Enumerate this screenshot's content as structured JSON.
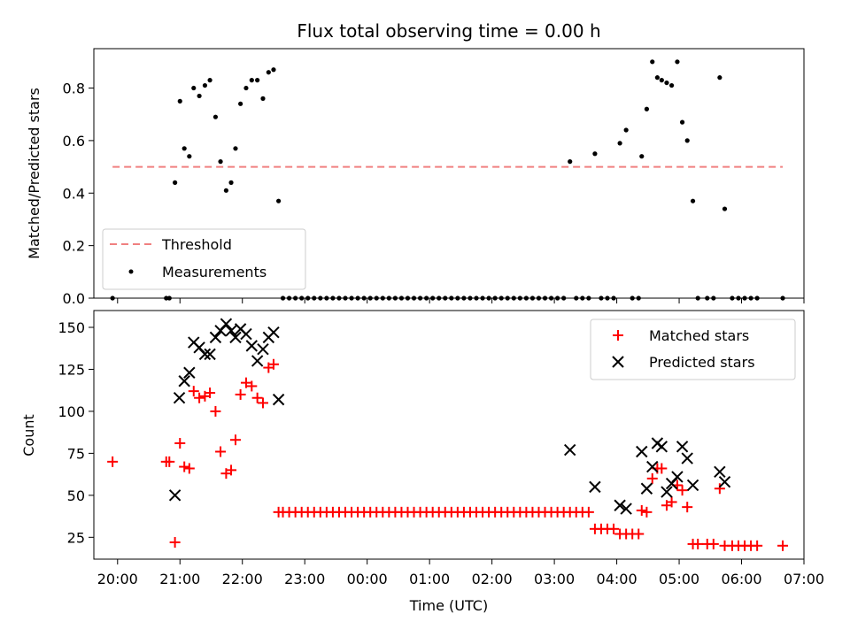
{
  "chart_data": [
    {
      "type": "scatter",
      "title": "Flux total observing time = 0.00 h",
      "xlabel": "",
      "ylabel": "Matched/Predicted stars",
      "ylim": [
        0,
        0.95
      ],
      "yticks": [
        0.0,
        0.2,
        0.4,
        0.6,
        0.8
      ],
      "ytick_labels": [
        "0.0",
        "0.2",
        "0.4",
        "0.6",
        "0.8"
      ],
      "xlim": [
        19.62,
        31.0
      ],
      "legend_position": "lower-left",
      "threshold": {
        "name": "Threshold",
        "value": 0.5,
        "x_range": [
          19.92,
          30.66
        ],
        "color": "#f08080"
      },
      "series": [
        {
          "name": "Measurements",
          "color": "#000000",
          "points": [
            [
              19.92,
              0.0
            ],
            [
              20.78,
              0.0
            ],
            [
              20.83,
              0.0
            ],
            [
              20.92,
              0.44
            ],
            [
              21.0,
              0.75
            ],
            [
              21.07,
              0.57
            ],
            [
              21.15,
              0.54
            ],
            [
              21.22,
              0.8
            ],
            [
              21.31,
              0.77
            ],
            [
              21.4,
              0.81
            ],
            [
              21.48,
              0.83
            ],
            [
              21.57,
              0.69
            ],
            [
              21.65,
              0.52
            ],
            [
              21.74,
              0.41
            ],
            [
              21.82,
              0.44
            ],
            [
              21.89,
              0.57
            ],
            [
              21.97,
              0.74
            ],
            [
              22.06,
              0.8
            ],
            [
              22.15,
              0.83
            ],
            [
              22.24,
              0.83
            ],
            [
              22.33,
              0.76
            ],
            [
              22.42,
              0.86
            ],
            [
              22.5,
              0.87
            ],
            [
              22.58,
              0.37
            ],
            [
              22.65,
              0.0
            ],
            [
              22.75,
              0.0
            ],
            [
              22.85,
              0.0
            ],
            [
              22.95,
              0.0
            ],
            [
              23.05,
              0.0
            ],
            [
              23.15,
              0.0
            ],
            [
              23.25,
              0.0
            ],
            [
              23.35,
              0.0
            ],
            [
              23.45,
              0.0
            ],
            [
              23.55,
              0.0
            ],
            [
              23.65,
              0.0
            ],
            [
              23.75,
              0.0
            ],
            [
              23.85,
              0.0
            ],
            [
              23.95,
              0.0
            ],
            [
              24.05,
              0.0
            ],
            [
              24.15,
              0.0
            ],
            [
              24.25,
              0.0
            ],
            [
              24.35,
              0.0
            ],
            [
              24.45,
              0.0
            ],
            [
              24.55,
              0.0
            ],
            [
              24.65,
              0.0
            ],
            [
              24.75,
              0.0
            ],
            [
              24.85,
              0.0
            ],
            [
              24.95,
              0.0
            ],
            [
              25.05,
              0.0
            ],
            [
              25.15,
              0.0
            ],
            [
              25.25,
              0.0
            ],
            [
              25.35,
              0.0
            ],
            [
              25.45,
              0.0
            ],
            [
              25.55,
              0.0
            ],
            [
              25.65,
              0.0
            ],
            [
              25.75,
              0.0
            ],
            [
              25.85,
              0.0
            ],
            [
              25.95,
              0.0
            ],
            [
              26.05,
              0.0
            ],
            [
              26.15,
              0.0
            ],
            [
              26.25,
              0.0
            ],
            [
              26.35,
              0.0
            ],
            [
              26.45,
              0.0
            ],
            [
              26.55,
              0.0
            ],
            [
              26.65,
              0.0
            ],
            [
              26.75,
              0.0
            ],
            [
              26.85,
              0.0
            ],
            [
              26.95,
              0.0
            ],
            [
              27.05,
              0.0
            ],
            [
              27.15,
              0.0
            ],
            [
              27.25,
              0.52
            ],
            [
              27.35,
              0.0
            ],
            [
              27.45,
              0.0
            ],
            [
              27.55,
              0.0
            ],
            [
              27.65,
              0.55
            ],
            [
              27.75,
              0.0
            ],
            [
              27.85,
              0.0
            ],
            [
              27.95,
              0.0
            ],
            [
              28.05,
              0.59
            ],
            [
              28.15,
              0.64
            ],
            [
              28.25,
              0.0
            ],
            [
              28.35,
              0.0
            ],
            [
              28.4,
              0.54
            ],
            [
              28.48,
              0.72
            ],
            [
              28.57,
              0.9
            ],
            [
              28.65,
              0.84
            ],
            [
              28.72,
              0.83
            ],
            [
              28.8,
              0.82
            ],
            [
              28.88,
              0.81
            ],
            [
              28.97,
              0.9
            ],
            [
              29.05,
              0.67
            ],
            [
              29.13,
              0.6
            ],
            [
              29.22,
              0.37
            ],
            [
              29.3,
              0.0
            ],
            [
              29.45,
              0.0
            ],
            [
              29.55,
              0.0
            ],
            [
              29.65,
              0.84
            ],
            [
              29.73,
              0.34
            ],
            [
              29.85,
              0.0
            ],
            [
              29.95,
              0.0
            ],
            [
              30.05,
              0.0
            ],
            [
              30.15,
              0.0
            ],
            [
              30.25,
              0.0
            ],
            [
              30.66,
              0.0
            ]
          ]
        }
      ]
    },
    {
      "type": "scatter",
      "xlabel": "Time (UTC)",
      "ylabel": "Count",
      "ylim": [
        12,
        160
      ],
      "yticks": [
        25,
        50,
        75,
        100,
        125,
        150
      ],
      "ytick_labels": [
        "25",
        "50",
        "75",
        "100",
        "125",
        "150"
      ],
      "xlim": [
        19.62,
        31.0
      ],
      "xticks": [
        20,
        21,
        22,
        23,
        24,
        25,
        26,
        27,
        28,
        29,
        30,
        31
      ],
      "xtick_labels": [
        "20:00",
        "21:00",
        "22:00",
        "23:00",
        "00:00",
        "01:00",
        "02:00",
        "03:00",
        "04:00",
        "05:00",
        "06:00",
        "07:00"
      ],
      "legend_position": "upper-right",
      "series": [
        {
          "name": "Matched stars",
          "color": "#ff0000",
          "marker": "plus",
          "points": [
            [
              19.92,
              70
            ],
            [
              20.78,
              70
            ],
            [
              20.83,
              70
            ],
            [
              20.92,
              22
            ],
            [
              21.0,
              81
            ],
            [
              21.07,
              67
            ],
            [
              21.15,
              66
            ],
            [
              21.22,
              112
            ],
            [
              21.31,
              108
            ],
            [
              21.4,
              109
            ],
            [
              21.48,
              111
            ],
            [
              21.57,
              100
            ],
            [
              21.65,
              76
            ],
            [
              21.74,
              63
            ],
            [
              21.82,
              65
            ],
            [
              21.89,
              83
            ],
            [
              21.97,
              110
            ],
            [
              22.06,
              117
            ],
            [
              22.15,
              115
            ],
            [
              22.24,
              108
            ],
            [
              22.33,
              105
            ],
            [
              22.42,
              126
            ],
            [
              22.5,
              128
            ],
            [
              22.58,
              40
            ],
            [
              22.65,
              40
            ],
            [
              22.75,
              40
            ],
            [
              22.85,
              40
            ],
            [
              22.95,
              40
            ],
            [
              23.05,
              40
            ],
            [
              23.15,
              40
            ],
            [
              23.25,
              40
            ],
            [
              23.35,
              40
            ],
            [
              23.45,
              40
            ],
            [
              23.55,
              40
            ],
            [
              23.65,
              40
            ],
            [
              23.75,
              40
            ],
            [
              23.85,
              40
            ],
            [
              23.95,
              40
            ],
            [
              24.05,
              40
            ],
            [
              24.15,
              40
            ],
            [
              24.25,
              40
            ],
            [
              24.35,
              40
            ],
            [
              24.45,
              40
            ],
            [
              24.55,
              40
            ],
            [
              24.65,
              40
            ],
            [
              24.75,
              40
            ],
            [
              24.85,
              40
            ],
            [
              24.95,
              40
            ],
            [
              25.05,
              40
            ],
            [
              25.15,
              40
            ],
            [
              25.25,
              40
            ],
            [
              25.35,
              40
            ],
            [
              25.45,
              40
            ],
            [
              25.55,
              40
            ],
            [
              25.65,
              40
            ],
            [
              25.75,
              40
            ],
            [
              25.85,
              40
            ],
            [
              25.95,
              40
            ],
            [
              26.05,
              40
            ],
            [
              26.15,
              40
            ],
            [
              26.25,
              40
            ],
            [
              26.35,
              40
            ],
            [
              26.45,
              40
            ],
            [
              26.55,
              40
            ],
            [
              26.65,
              40
            ],
            [
              26.75,
              40
            ],
            [
              26.85,
              40
            ],
            [
              26.95,
              40
            ],
            [
              27.05,
              40
            ],
            [
              27.15,
              40
            ],
            [
              27.25,
              40
            ],
            [
              27.35,
              40
            ],
            [
              27.45,
              40
            ],
            [
              27.55,
              40
            ],
            [
              27.65,
              30
            ],
            [
              27.75,
              30
            ],
            [
              27.85,
              30
            ],
            [
              27.95,
              30
            ],
            [
              28.05,
              27
            ],
            [
              28.15,
              27
            ],
            [
              28.25,
              27
            ],
            [
              28.35,
              27
            ],
            [
              28.4,
              41
            ],
            [
              28.48,
              40
            ],
            [
              28.57,
              60
            ],
            [
              28.65,
              66
            ],
            [
              28.72,
              66
            ],
            [
              28.8,
              44
            ],
            [
              28.88,
              46
            ],
            [
              28.97,
              56
            ],
            [
              29.05,
              53
            ],
            [
              29.13,
              43
            ],
            [
              29.22,
              21
            ],
            [
              29.3,
              21
            ],
            [
              29.45,
              21
            ],
            [
              29.55,
              21
            ],
            [
              29.65,
              54
            ],
            [
              29.73,
              20
            ],
            [
              29.85,
              20
            ],
            [
              29.95,
              20
            ],
            [
              30.05,
              20
            ],
            [
              30.15,
              20
            ],
            [
              30.25,
              20
            ],
            [
              30.66,
              20
            ]
          ]
        },
        {
          "name": "Predicted stars",
          "color": "#000000",
          "marker": "x",
          "points": [
            [
              20.92,
              50
            ],
            [
              20.99,
              108
            ],
            [
              21.07,
              118
            ],
            [
              21.15,
              123
            ],
            [
              21.22,
              141
            ],
            [
              21.31,
              138
            ],
            [
              21.4,
              134
            ],
            [
              21.48,
              134
            ],
            [
              21.57,
              144
            ],
            [
              21.65,
              148
            ],
            [
              21.74,
              152
            ],
            [
              21.82,
              148
            ],
            [
              21.89,
              144
            ],
            [
              21.97,
              149
            ],
            [
              22.06,
              146
            ],
            [
              22.15,
              139
            ],
            [
              22.24,
              130
            ],
            [
              22.33,
              137
            ],
            [
              22.42,
              144
            ],
            [
              22.5,
              147
            ],
            [
              22.58,
              107
            ],
            [
              27.25,
              77
            ],
            [
              27.65,
              55
            ],
            [
              28.05,
              44
            ],
            [
              28.15,
              42
            ],
            [
              28.4,
              76
            ],
            [
              28.48,
              54
            ],
            [
              28.57,
              67
            ],
            [
              28.65,
              81
            ],
            [
              28.72,
              79
            ],
            [
              28.8,
              52
            ],
            [
              28.88,
              57
            ],
            [
              28.97,
              61
            ],
            [
              29.05,
              79
            ],
            [
              29.13,
              72
            ],
            [
              29.22,
              56
            ],
            [
              29.65,
              64
            ],
            [
              29.73,
              58
            ]
          ]
        }
      ]
    }
  ]
}
